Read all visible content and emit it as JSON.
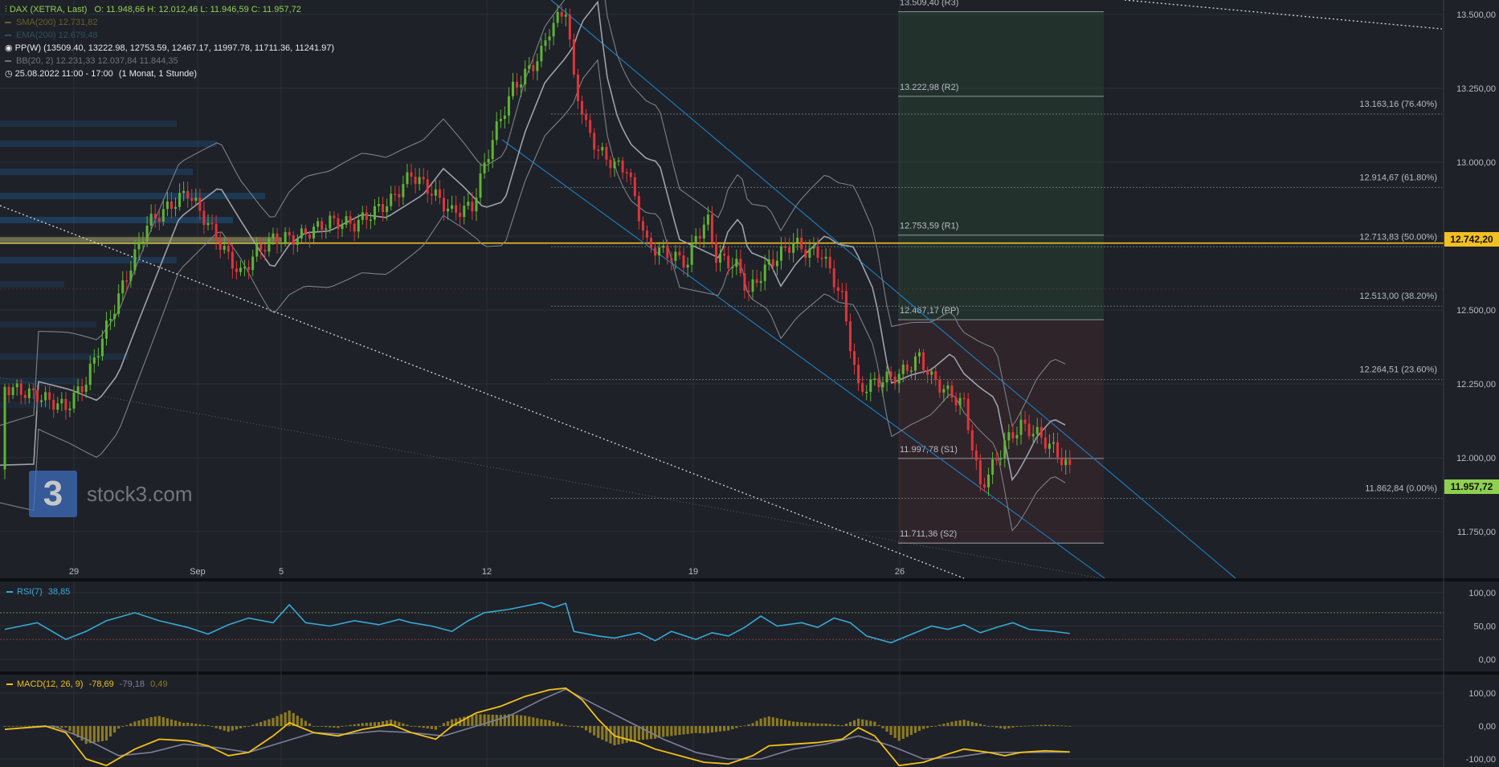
{
  "header": {
    "symbol": "DAX (XETRA, Last)",
    "ohlc": "O: 11.948,66  H: 12.012,46  L: 11.946,59  C: 11.957,72",
    "sma": {
      "name": "SMA(200)",
      "value": "12.731,82"
    },
    "ema": {
      "name": "EMA(200)",
      "value": "12.679,48"
    },
    "pp": {
      "name": "PP(W)",
      "values": "(13509.40, 13222.98, 12753.59, 12467.17, 11997.78, 11711.36, 11241.97)"
    },
    "bb": {
      "name": "BB(20, 2)",
      "values": "12.231,33  12.037,84  11.844,35"
    },
    "period": {
      "range": "25.08.2022 11:00 - 17:00",
      "interval": "(1 Monat, 1 Stunde)"
    }
  },
  "watermark": {
    "logo": "3",
    "text": "stock3.com"
  },
  "price_tags": {
    "yellow": "12.742,20",
    "green": "11.957,72"
  },
  "colors": {
    "background": "#1e2128",
    "up": "#5fb335",
    "down": "#e0343a",
    "accent": "#f3c021",
    "rsi": "#37a9d6",
    "macd": "#f2c119",
    "signal": "#7d7f9a",
    "histogram": "#8b7a22",
    "channel": "#1f79b7"
  },
  "chart_data": [
    {
      "type": "candlestick",
      "title": "DAX (XETRA, Last)",
      "y_axis_ticks": [
        "13.500,00",
        "13.250,00",
        "13.000,00",
        "12.750,00",
        "12.500,00",
        "12.250,00",
        "12.000,00",
        "11.750,00"
      ],
      "y_tick_values": [
        13500,
        13250,
        13000,
        12750,
        12500,
        12250,
        12000,
        11750
      ],
      "x_axis_ticks": [
        "29",
        "Sep",
        "5",
        "12",
        "19",
        "26"
      ],
      "ylim": [
        11710,
        13550
      ],
      "close_path": [
        [
          0,
          12240
        ],
        [
          8,
          12210
        ],
        [
          15,
          12170
        ],
        [
          20,
          12260
        ],
        [
          25,
          12440
        ],
        [
          35,
          12790
        ],
        [
          45,
          12900
        ],
        [
          55,
          12680
        ],
        [
          58,
          12620
        ],
        [
          62,
          12700
        ],
        [
          66,
          12740
        ],
        [
          72,
          12745
        ],
        [
          80,
          12800
        ],
        [
          86,
          12790
        ],
        [
          95,
          12870
        ],
        [
          100,
          12960
        ],
        [
          105,
          12900
        ],
        [
          110,
          12830
        ],
        [
          115,
          12850
        ],
        [
          120,
          13080
        ],
        [
          125,
          13250
        ],
        [
          130,
          13330
        ],
        [
          132,
          13370
        ],
        [
          134,
          13450
        ],
        [
          138,
          13520
        ],
        [
          140,
          13280
        ],
        [
          143,
          13120
        ],
        [
          146,
          13040
        ],
        [
          150,
          12990
        ],
        [
          153,
          12980
        ],
        [
          158,
          12720
        ],
        [
          163,
          12690
        ],
        [
          168,
          12660
        ],
        [
          170,
          12750
        ],
        [
          173,
          12800
        ],
        [
          175,
          12680
        ],
        [
          180,
          12650
        ],
        [
          183,
          12560
        ],
        [
          187,
          12640
        ],
        [
          190,
          12680
        ],
        [
          194,
          12730
        ],
        [
          197,
          12700
        ],
        [
          201,
          12690
        ],
        [
          206,
          12540
        ],
        [
          210,
          12230
        ],
        [
          215,
          12260
        ],
        [
          220,
          12280
        ],
        [
          225,
          12340
        ],
        [
          228,
          12270
        ],
        [
          232,
          12220
        ],
        [
          236,
          12180
        ],
        [
          240,
          11900
        ],
        [
          243,
          11970
        ],
        [
          246,
          12050
        ],
        [
          250,
          12110
        ],
        [
          254,
          12080
        ],
        [
          258,
          12030
        ],
        [
          262,
          11960
        ]
      ],
      "last_close": 11957.72,
      "fibonacci": [
        {
          "label": "13.163,16 (76.40%)",
          "value": 13163.16
        },
        {
          "label": "12.914,67 (61.80%)",
          "value": 12914.67
        },
        {
          "label": "12.713,83 (50.00%)",
          "value": 12713.83
        },
        {
          "label": "12.513,00 (38.20%)",
          "value": 12513.0
        },
        {
          "label": "12.264,51 (23.60%)",
          "value": 12264.51
        },
        {
          "label": "11.862,84 (0.00%)",
          "value": 11862.84
        }
      ],
      "pivots": [
        {
          "label": "13.509,40 (R3)",
          "value": 13509.4
        },
        {
          "label": "13.222,98 (R2)",
          "value": 13222.98
        },
        {
          "label": "12.753,59 (R1)",
          "value": 12753.59
        },
        {
          "label": "12.467,17 (PP)",
          "value": 12467.17
        },
        {
          "label": "11.997,78 (S1)",
          "value": 11997.78
        },
        {
          "label": "11.711,36 (S2)",
          "value": 11711.36
        }
      ],
      "sma200": 12731.82,
      "ema200": 12679.48
    },
    {
      "type": "line",
      "title": "RSI(7)",
      "value": "38,85",
      "y_axis_ticks": [
        "100,00",
        "50,00",
        "0,00"
      ],
      "y_tick_values": [
        100,
        50,
        0
      ],
      "ylim": [
        -10,
        110
      ],
      "levels": [
        70,
        30
      ],
      "path": [
        [
          0,
          45
        ],
        [
          8,
          55
        ],
        [
          15,
          30
        ],
        [
          20,
          42
        ],
        [
          25,
          58
        ],
        [
          32,
          70
        ],
        [
          38,
          58
        ],
        [
          45,
          48
        ],
        [
          50,
          38
        ],
        [
          55,
          52
        ],
        [
          60,
          62
        ],
        [
          66,
          55
        ],
        [
          70,
          82
        ],
        [
          74,
          55
        ],
        [
          80,
          50
        ],
        [
          86,
          58
        ],
        [
          92,
          52
        ],
        [
          97,
          60
        ],
        [
          100,
          55
        ],
        [
          105,
          50
        ],
        [
          110,
          42
        ],
        [
          114,
          58
        ],
        [
          118,
          70
        ],
        [
          124,
          75
        ],
        [
          128,
          80
        ],
        [
          132,
          85
        ],
        [
          135,
          78
        ],
        [
          138,
          84
        ],
        [
          140,
          42
        ],
        [
          146,
          35
        ],
        [
          150,
          32
        ],
        [
          156,
          40
        ],
        [
          160,
          28
        ],
        [
          164,
          42
        ],
        [
          170,
          30
        ],
        [
          174,
          40
        ],
        [
          178,
          35
        ],
        [
          182,
          48
        ],
        [
          186,
          65
        ],
        [
          190,
          50
        ],
        [
          196,
          55
        ],
        [
          200,
          48
        ],
        [
          204,
          62
        ],
        [
          208,
          55
        ],
        [
          212,
          35
        ],
        [
          218,
          25
        ],
        [
          224,
          40
        ],
        [
          228,
          50
        ],
        [
          232,
          45
        ],
        [
          236,
          52
        ],
        [
          240,
          40
        ],
        [
          244,
          48
        ],
        [
          248,
          55
        ],
        [
          252,
          45
        ],
        [
          258,
          42
        ],
        [
          262,
          38.85
        ]
      ]
    },
    {
      "type": "line",
      "title": "MACD(12, 26, 9)",
      "values": [
        "-78,69",
        "-79,18",
        "0,49"
      ],
      "y_axis_ticks": [
        "100,00",
        "0,00",
        "-100,00"
      ],
      "y_tick_values": [
        100,
        0,
        -100
      ],
      "ylim": [
        -130,
        135
      ],
      "macd_path": [
        [
          0,
          -10
        ],
        [
          10,
          0
        ],
        [
          15,
          -20
        ],
        [
          20,
          -100
        ],
        [
          25,
          -120
        ],
        [
          32,
          -70
        ],
        [
          38,
          -40
        ],
        [
          45,
          -45
        ],
        [
          50,
          -60
        ],
        [
          55,
          -90
        ],
        [
          60,
          -80
        ],
        [
          66,
          -30
        ],
        [
          70,
          10
        ],
        [
          76,
          -20
        ],
        [
          82,
          -30
        ],
        [
          88,
          -10
        ],
        [
          95,
          5
        ],
        [
          100,
          -20
        ],
        [
          106,
          -40
        ],
        [
          110,
          0
        ],
        [
          116,
          40
        ],
        [
          122,
          60
        ],
        [
          128,
          90
        ],
        [
          134,
          110
        ],
        [
          138,
          115
        ],
        [
          142,
          80
        ],
        [
          146,
          20
        ],
        [
          150,
          -30
        ],
        [
          156,
          -50
        ],
        [
          160,
          -70
        ],
        [
          166,
          -90
        ],
        [
          172,
          -110
        ],
        [
          178,
          -115
        ],
        [
          184,
          -90
        ],
        [
          188,
          -60
        ],
        [
          194,
          -55
        ],
        [
          200,
          -50
        ],
        [
          206,
          -40
        ],
        [
          210,
          -5
        ],
        [
          214,
          -30
        ],
        [
          220,
          -120
        ],
        [
          226,
          -110
        ],
        [
          232,
          -85
        ],
        [
          236,
          -70
        ],
        [
          242,
          -80
        ],
        [
          246,
          -90
        ],
        [
          250,
          -80
        ],
        [
          256,
          -75
        ],
        [
          262,
          -78.69
        ]
      ],
      "signal_path": [
        [
          0,
          -10
        ],
        [
          12,
          0
        ],
        [
          20,
          -40
        ],
        [
          28,
          -90
        ],
        [
          36,
          -80
        ],
        [
          44,
          -55
        ],
        [
          52,
          -65
        ],
        [
          60,
          -80
        ],
        [
          68,
          -50
        ],
        [
          76,
          -20
        ],
        [
          84,
          -25
        ],
        [
          92,
          -15
        ],
        [
          100,
          -20
        ],
        [
          108,
          -30
        ],
        [
          116,
          0
        ],
        [
          124,
          30
        ],
        [
          132,
          80
        ],
        [
          138,
          112
        ],
        [
          146,
          60
        ],
        [
          154,
          10
        ],
        [
          162,
          -40
        ],
        [
          170,
          -80
        ],
        [
          178,
          -100
        ],
        [
          186,
          -100
        ],
        [
          194,
          -70
        ],
        [
          202,
          -55
        ],
        [
          210,
          -30
        ],
        [
          218,
          -60
        ],
        [
          226,
          -100
        ],
        [
          234,
          -95
        ],
        [
          242,
          -80
        ],
        [
          250,
          -80
        ],
        [
          262,
          -79.18
        ]
      ]
    }
  ]
}
